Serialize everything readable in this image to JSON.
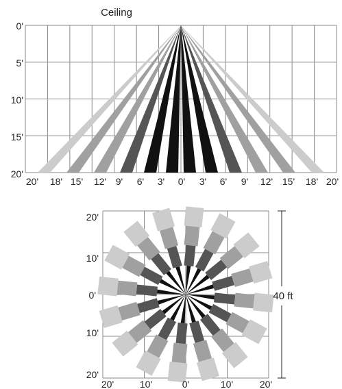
{
  "side_view": {
    "title": "Ceiling",
    "y_labels": [
      "0'",
      "5'",
      "10'",
      "15'",
      "20'"
    ],
    "x_labels": [
      "20'",
      "18'",
      "15'",
      "12'",
      "9'",
      "6'",
      "3'",
      "0'",
      "3'",
      "6'",
      "9'",
      "12'",
      "15'",
      "18'",
      "20'"
    ]
  },
  "top_view": {
    "y_labels": [
      "20'",
      "10'",
      "0'",
      "10'",
      "20'"
    ],
    "x_labels": [
      "20'",
      "10'",
      "0'",
      "10'",
      "20'"
    ],
    "dimension_label": "40 ft"
  },
  "colors": {
    "grid": "#888888",
    "tier_far": "#cccccc",
    "tier_mid": "#a0a0a0",
    "tier_near": "#555555",
    "tier_center": "#111111"
  }
}
